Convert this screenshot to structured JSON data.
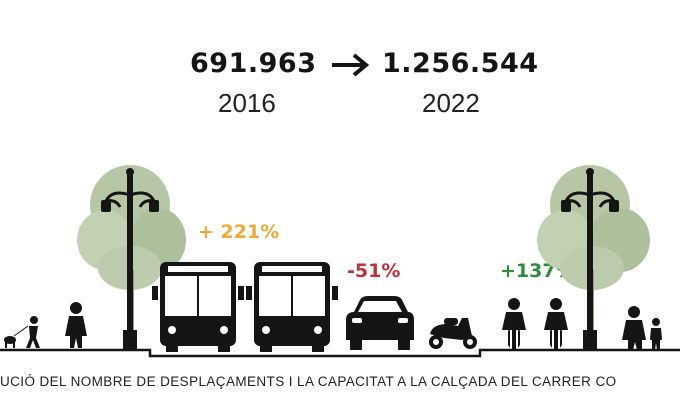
{
  "figures": {
    "from_value": "691.963",
    "from_year": "2016",
    "to_value": "1.256.544",
    "to_year": "2022"
  },
  "changes": {
    "bus": {
      "label": "+ 221%",
      "color": "#f0a93a"
    },
    "car": {
      "label": "-51%",
      "color": "#c0303b"
    },
    "bike": {
      "label": "+137%",
      "color": "#2e8b3e"
    }
  },
  "caption": "UCIÓ DEL NOMBRE DE DESPLAÇAMENTS I LA CAPACITAT A LA CALÇADA DEL CARRER CO",
  "colors": {
    "ink": "#151515",
    "tree": "#b7c7a6"
  }
}
